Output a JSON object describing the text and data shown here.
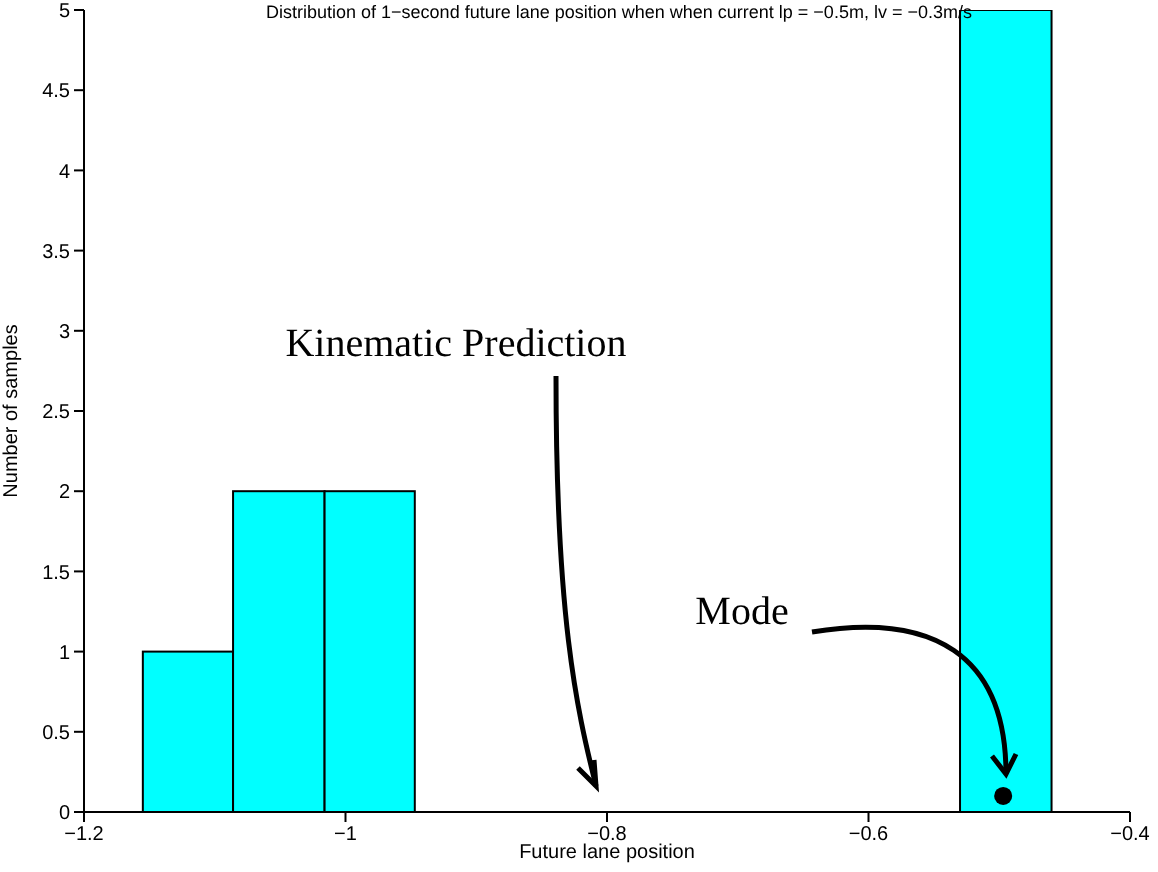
{
  "chart_data": {
    "type": "histogram",
    "title": "Distribution of 1−second future lane position when when current lp = −0.5m, lv = −0.3m/s",
    "xlabel": "Future lane position",
    "ylabel": "Number of samples",
    "series": [
      {
        "type": "histogram",
        "bins": [
          -1.155,
          -1.086,
          -1.016,
          -0.947
        ],
        "values": [
          1,
          2,
          2
        ],
        "color": "#00ffff"
      },
      {
        "type": "histogram",
        "bins": [
          -0.53,
          -0.46
        ],
        "values": [
          5
        ],
        "color": "#00ffff"
      },
      {
        "type": "scatter",
        "x": [
          -0.497
        ],
        "values": [
          0.1
        ],
        "color": "#000000",
        "marker": "circle"
      }
    ],
    "annotations": [
      "Kinematic Prediction",
      "Mode"
    ],
    "xlim": [
      -1.2,
      -0.4
    ],
    "xticks": [
      {
        "value": -1.2,
        "label": "−1.2"
      },
      {
        "value": -1,
        "label": "−1"
      },
      {
        "value": -0.8,
        "label": "−0.8"
      },
      {
        "value": -0.6,
        "label": "−0.6"
      },
      {
        "value": -0.4,
        "label": "−0.4"
      }
    ],
    "ylim": [
      0,
      5
    ],
    "yticks": [
      0,
      0.5,
      1,
      1.5,
      2,
      2.5,
      3,
      3.5,
      4,
      4.5,
      5
    ],
    "grid": false,
    "legend": false
  }
}
